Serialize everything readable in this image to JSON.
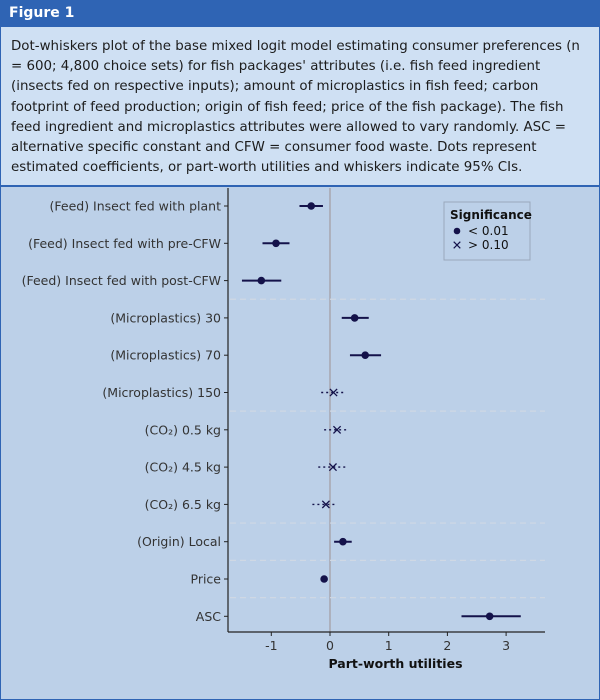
{
  "figure": {
    "label": "Figure 1",
    "caption": "Dot-whiskers plot of the base mixed logit model estimating consumer preferences (n = 600; 4,800 choice sets) for fish packages' attributes (i.e. fish feed ingredient (insects fed on respective inputs); amount of microplastics in fish feed; carbon footprint of feed production; origin of fish feed; price of the fish package). The fish feed ingredient and microplastics attributes were allowed to vary randomly. ASC = alternative specific constant and CFW = consumer food waste. Dots represent estimated coefficients, or part-worth utilities and whiskers indicate 95% CIs."
  },
  "colors": {
    "header": "#2f64b4",
    "caption_bg": "#cfe0f3",
    "plot_bg": "#bcd0e8",
    "point": "#14124a",
    "zero_line": "#a9a9b2"
  },
  "chart_data": {
    "type": "scatter",
    "xlabel": "Part-worth utilities",
    "ylabel": "",
    "xlim": [
      -1.65,
      3.45
    ],
    "xticks": [
      -1,
      0,
      1,
      2,
      3
    ],
    "reference_line": 0,
    "grid": false,
    "legend_position": "top-right",
    "legend": {
      "title": "Significance",
      "entries": [
        {
          "marker": "dot",
          "label": "< 0.01"
        },
        {
          "marker": "cross",
          "label": "> 0.10"
        }
      ]
    },
    "items": [
      {
        "label": "(Feed) Insect fed with plant",
        "estimate": -0.32,
        "ci": [
          -0.52,
          -0.12
        ],
        "significance": "< 0.01"
      },
      {
        "label": "(Feed) Insect fed with pre-CFW",
        "estimate": -0.92,
        "ci": [
          -1.15,
          -0.69
        ],
        "significance": "< 0.01"
      },
      {
        "label": "(Feed) Insect fed with post-CFW",
        "estimate": -1.17,
        "ci": [
          -1.5,
          -0.83
        ],
        "significance": "< 0.01"
      },
      {
        "label": "(Microplastics) 30",
        "estimate": 0.42,
        "ci": [
          0.2,
          0.66
        ],
        "significance": "< 0.01"
      },
      {
        "label": "(Microplastics) 70",
        "estimate": 0.6,
        "ci": [
          0.34,
          0.87
        ],
        "significance": "< 0.01"
      },
      {
        "label": "(Microplastics) 150",
        "estimate": 0.06,
        "ci": [
          -0.15,
          0.26
        ],
        "significance": "> 0.10"
      },
      {
        "label": "(CO₂) 0.5 kg",
        "estimate": 0.12,
        "ci": [
          -0.1,
          0.31
        ],
        "significance": "> 0.10"
      },
      {
        "label": "(CO₂) 4.5 kg",
        "estimate": 0.05,
        "ci": [
          -0.2,
          0.3
        ],
        "significance": "> 0.10"
      },
      {
        "label": "(CO₂) 6.5 kg",
        "estimate": -0.07,
        "ci": [
          -0.3,
          0.12
        ],
        "significance": "> 0.10"
      },
      {
        "label": "(Origin) Local",
        "estimate": 0.22,
        "ci": [
          0.07,
          0.37
        ],
        "significance": "< 0.01"
      },
      {
        "label": "Price",
        "estimate": -0.1,
        "ci": [
          -0.14,
          -0.06
        ],
        "significance": "< 0.01"
      },
      {
        "label": "ASC",
        "estimate": 2.72,
        "ci": [
          2.24,
          3.25
        ],
        "significance": "< 0.01"
      }
    ],
    "group_separators_after": [
      "(Feed) Insect fed with post-CFW",
      "(Microplastics) 150",
      "(CO₂) 6.5 kg",
      "(Origin) Local",
      "Price"
    ]
  }
}
